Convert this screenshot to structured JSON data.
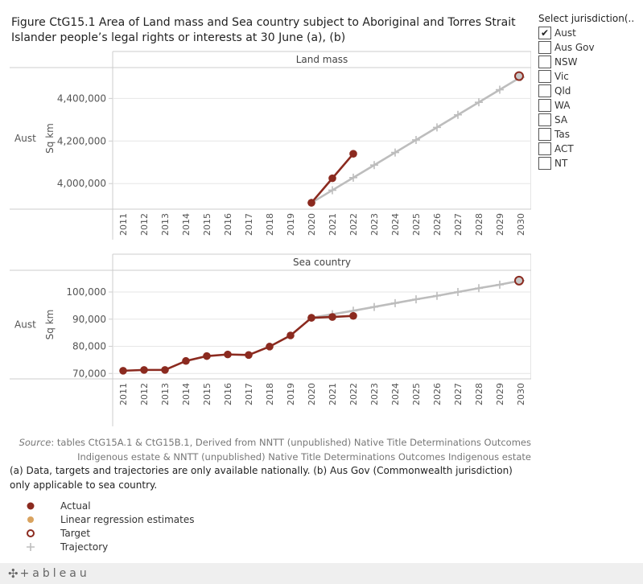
{
  "title": "Figure CtG15.1 Area of Land mass and Sea country subject to Aboriginal and Torres Strait Islander people’s legal rights or interests at 30 June (a), (b)",
  "filter": {
    "title": "Select jurisdiction(..",
    "options": [
      {
        "label": "Aust",
        "checked": true,
        "mark": "✔"
      },
      {
        "label": "Aus Gov",
        "checked": false,
        "mark": ""
      },
      {
        "label": "NSW",
        "checked": false,
        "mark": ""
      },
      {
        "label": "Vic",
        "checked": false,
        "mark": ""
      },
      {
        "label": "Qld",
        "checked": false,
        "mark": ""
      },
      {
        "label": "WA",
        "checked": false,
        "mark": ""
      },
      {
        "label": "SA",
        "checked": false,
        "mark": ""
      },
      {
        "label": "Tas",
        "checked": false,
        "mark": ""
      },
      {
        "label": "ACT",
        "checked": false,
        "mark": ""
      },
      {
        "label": "NT",
        "checked": false,
        "mark": ""
      }
    ]
  },
  "colors": {
    "actual": "#8b2a1f",
    "regression": "#d9a35f",
    "target_border": "#8b2a1f",
    "target_fill": "#c8c8c8",
    "trajectory": "#bdbdbd",
    "grid": "#e6e6e6",
    "axis": "#cccccc"
  },
  "chart_data": [
    {
      "type": "line",
      "title": "Land mass",
      "row_label": "Aust",
      "ylabel": "Sq km",
      "xlabel": "",
      "ylim": [
        3880000,
        4545000
      ],
      "yticks": [
        4000000,
        4200000,
        4400000
      ],
      "ytick_labels": [
        "4,000,000",
        "4,200,000",
        "4,400,000"
      ],
      "categories": [
        "2011",
        "2012",
        "2013",
        "2014",
        "2015",
        "2016",
        "2017",
        "2018",
        "2019",
        "2020",
        "2021",
        "2022",
        "2023",
        "2024",
        "2025",
        "2026",
        "2027",
        "2028",
        "2029",
        "2030"
      ],
      "series": [
        {
          "name": "Actual",
          "x": [
            "2020",
            "2021",
            "2022"
          ],
          "values": [
            3910000,
            4025000,
            4140000
          ]
        },
        {
          "name": "Trajectory",
          "x": [
            "2020",
            "2021",
            "2022",
            "2023",
            "2024",
            "2025",
            "2026",
            "2027",
            "2028",
            "2029",
            "2030"
          ],
          "values": [
            3910000,
            3969000,
            4028000,
            4087000,
            4146000,
            4205000,
            4264000,
            4323000,
            4382000,
            4441000,
            4500000
          ]
        },
        {
          "name": "Target",
          "x": [
            "2030"
          ],
          "values": [
            4505000
          ]
        }
      ]
    },
    {
      "type": "line",
      "title": "Sea country",
      "row_label": "Aust",
      "ylabel": "Sq km",
      "xlabel": "",
      "ylim": [
        68000,
        108000
      ],
      "yticks": [
        70000,
        80000,
        90000,
        100000
      ],
      "ytick_labels": [
        "70,000",
        "80,000",
        "90,000",
        "100,000"
      ],
      "categories": [
        "2011",
        "2012",
        "2013",
        "2014",
        "2015",
        "2016",
        "2017",
        "2018",
        "2019",
        "2020",
        "2021",
        "2022",
        "2023",
        "2024",
        "2025",
        "2026",
        "2027",
        "2028",
        "2029",
        "2030"
      ],
      "series": [
        {
          "name": "Actual",
          "x": [
            "2011",
            "2012",
            "2013",
            "2014",
            "2015",
            "2016",
            "2017",
            "2018",
            "2019",
            "2020",
            "2021",
            "2022"
          ],
          "values": [
            71000,
            71300,
            71300,
            74600,
            76400,
            77000,
            76800,
            79900,
            84000,
            90500,
            90800,
            91200
          ]
        },
        {
          "name": "Trajectory",
          "x": [
            "2020",
            "2021",
            "2022",
            "2023",
            "2024",
            "2025",
            "2026",
            "2027",
            "2028",
            "2029",
            "2030"
          ],
          "values": [
            90500,
            91800,
            93100,
            94500,
            95900,
            97300,
            98600,
            100000,
            101400,
            102700,
            104200
          ]
        },
        {
          "name": "Target",
          "x": [
            "2030"
          ],
          "values": [
            104200
          ]
        }
      ]
    }
  ],
  "source": {
    "label": "Source",
    "text": ": tables CtG15A.1 & CtG15B.1, Derived from NNTT (unpublished) Native Title Determinations Outcomes Indigenous estate & NNTT (unpublished) Native Title Determinations Outcomes Indigenous estate"
  },
  "note": "(a) Data, targets and trajectories are only available nationally. (b) Aus Gov (Commonwealth jurisdiction) only applicable to sea country.",
  "legend": [
    {
      "name": "actual",
      "label": "Actual"
    },
    {
      "name": "regression",
      "label": "Linear regression estimates"
    },
    {
      "name": "target",
      "label": "Target"
    },
    {
      "name": "trajectory",
      "label": "Trajectory"
    }
  ],
  "footer": {
    "logo_mark": "✣",
    "logo_text": "+ableau"
  }
}
